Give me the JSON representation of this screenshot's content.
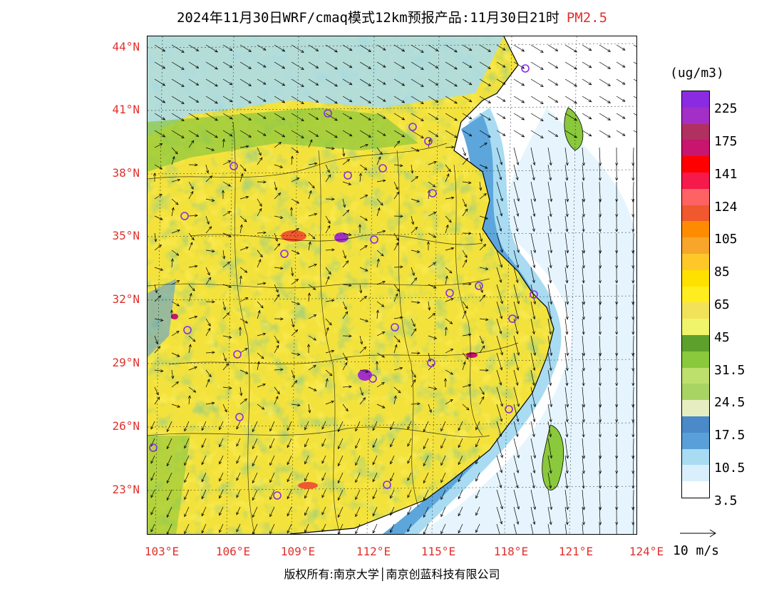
{
  "title": {
    "main": "2024年11月30日WRF/cmaq模式12km预报产品:11月30日21时",
    "pollutant": "PM2.5",
    "pollutant_color": "#e0302c"
  },
  "lat_labels": [
    "44°N",
    "41°N",
    "38°N",
    "35°N",
    "32°N",
    "29°N",
    "26°N",
    "23°N"
  ],
  "lon_labels": [
    "103°E",
    "106°E",
    "109°E",
    "112°E",
    "115°E",
    "118°E",
    "121°E",
    "124°E"
  ],
  "copyright": "版权所有:南京大学│南京创蓝科技有限公司",
  "legend": {
    "unit": "(ug/m3)",
    "colors": [
      "#8a2be2",
      "#a32fc7",
      "#b03060",
      "#c8156e",
      "#ff0000",
      "#f5194c",
      "#ff6262",
      "#f0582e",
      "#ff8c00",
      "#f7a62b",
      "#ffc828",
      "#ffe100",
      "#ffed1f",
      "#f2e25a",
      "#f0f46a",
      "#5ea02c",
      "#8ac83c",
      "#bde06c",
      "#a8d464",
      "#e6eec1",
      "#4a8ac8",
      "#5aa0d8",
      "#a8dcf2",
      "#d9f0fc",
      "#ffffff"
    ],
    "labels": [
      "225",
      "175",
      "141",
      "124",
      "105",
      "85",
      "65",
      "45",
      "31.5",
      "24.5",
      "17.5",
      "10.5",
      "3.5"
    ]
  },
  "wind_reference": "10 m/s",
  "cities_count_note": "",
  "map": {
    "sea_color": "#a9dcf2",
    "land_base_color": "#f2e13a"
  }
}
